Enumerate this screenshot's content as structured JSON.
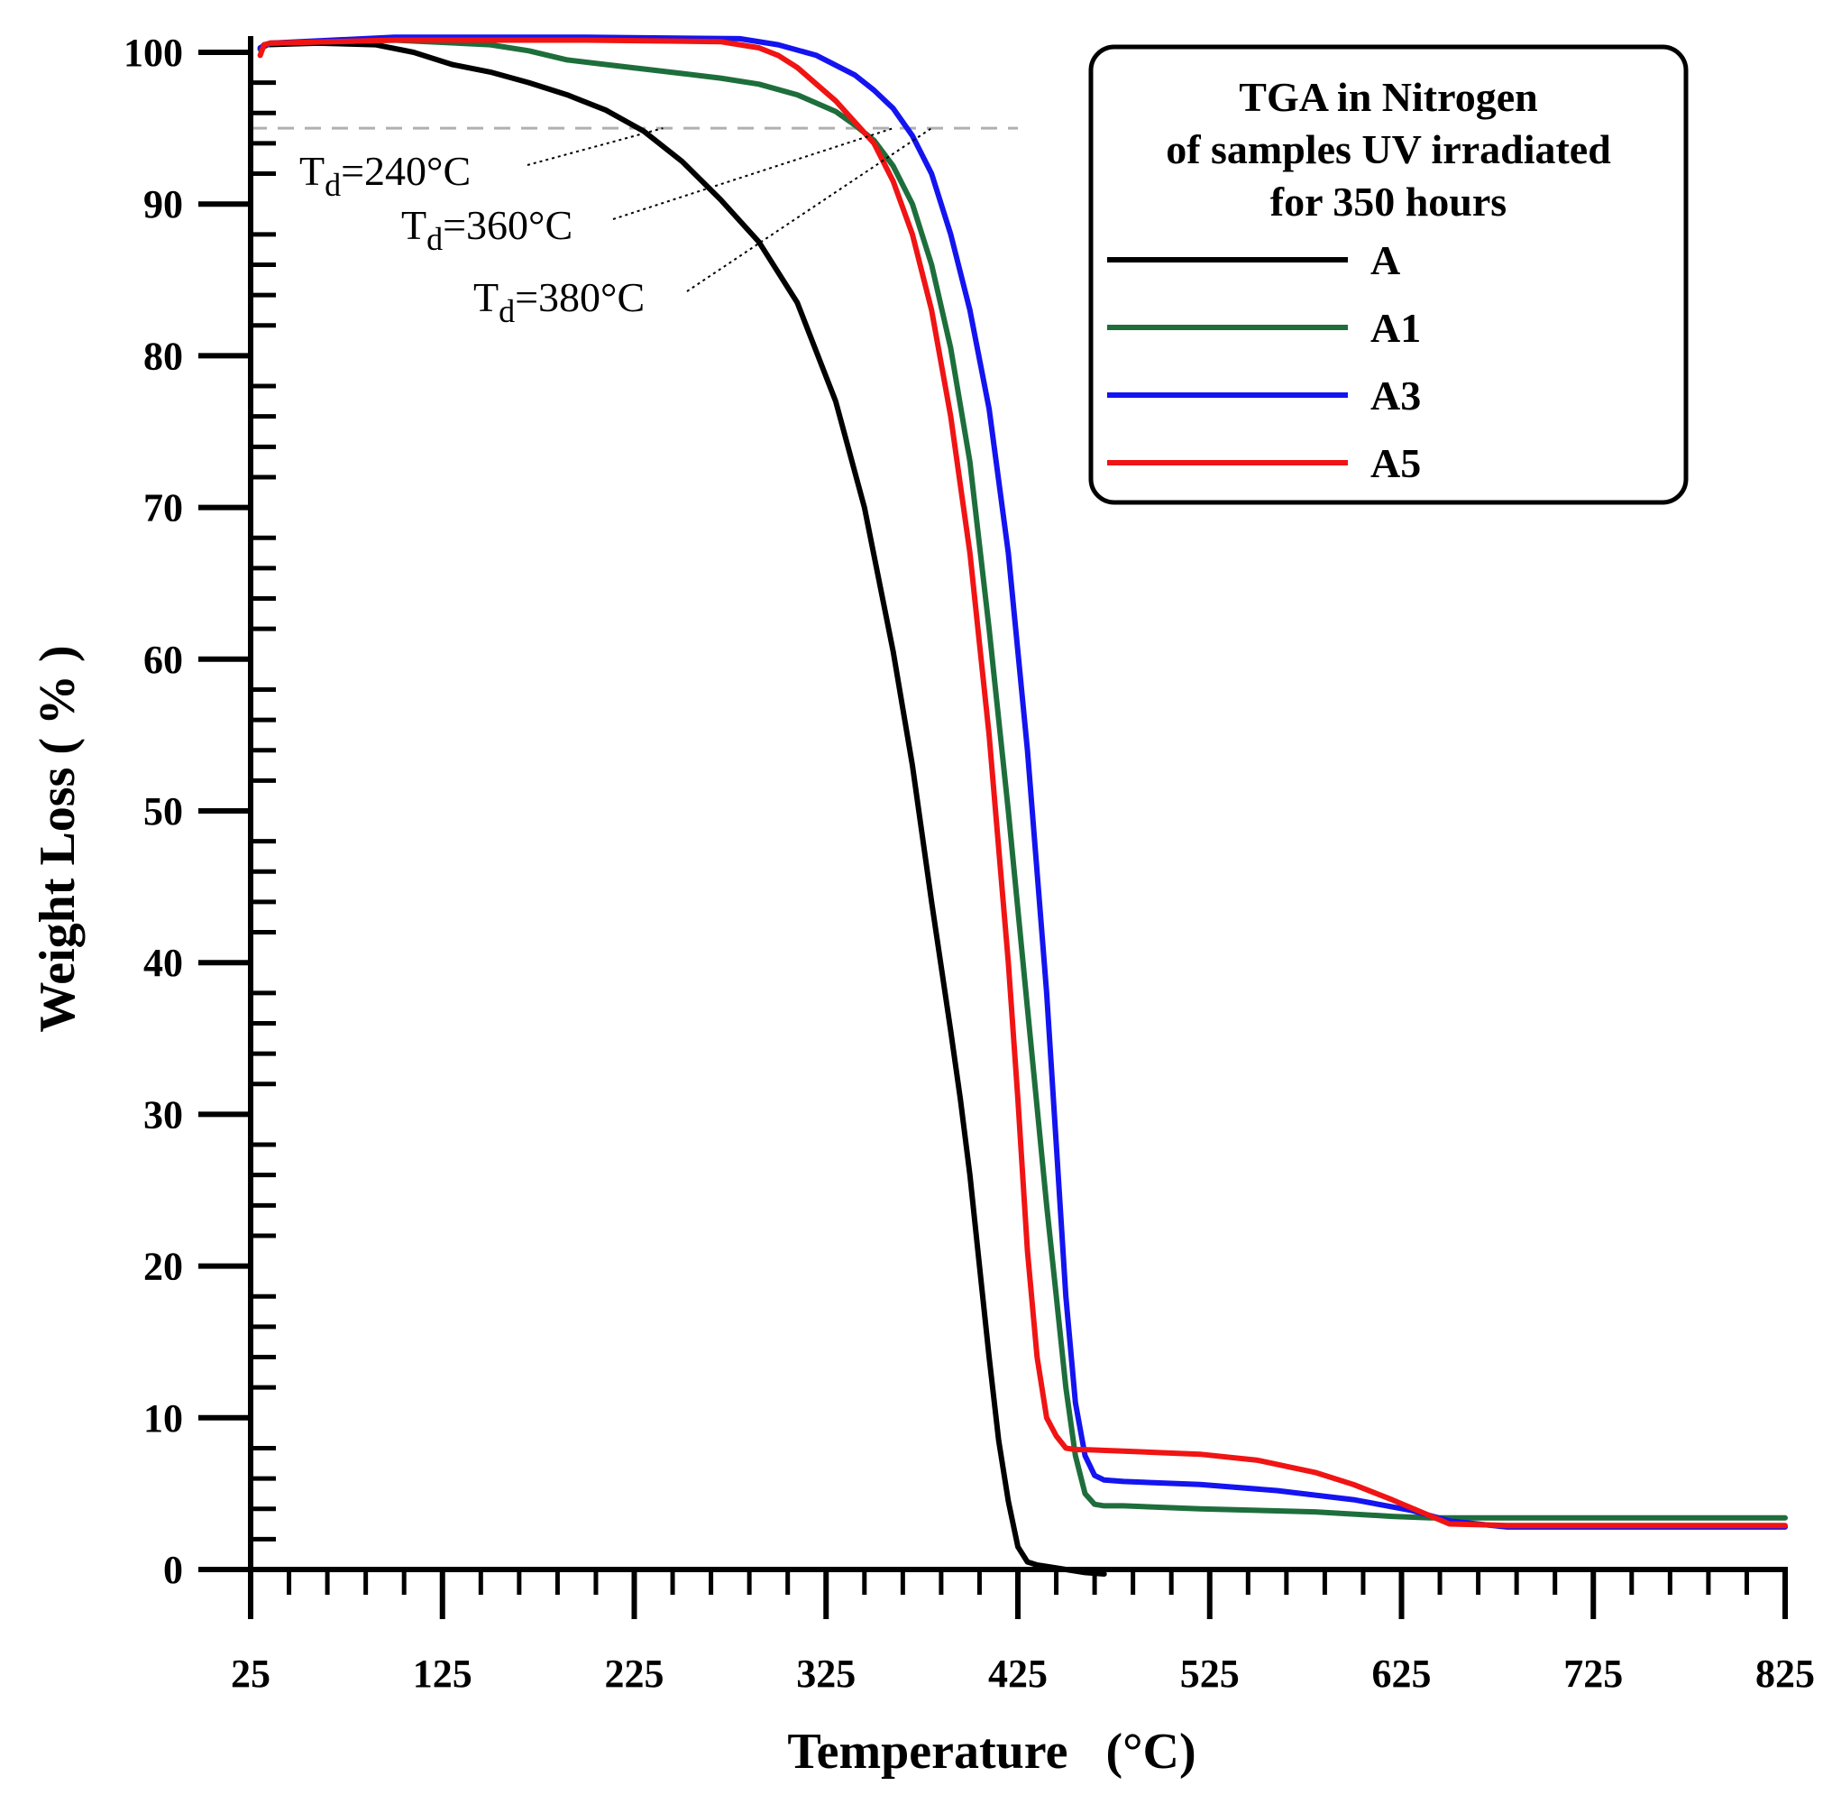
{
  "chart_data": {
    "type": "line",
    "title": "",
    "xlabel": "Temperature   (°C)",
    "ylabel": "Weight Loss ( % )",
    "xlim": [
      25,
      825
    ],
    "ylim": [
      0,
      100
    ],
    "x_ticks": [
      25,
      125,
      225,
      325,
      425,
      525,
      625,
      725,
      825
    ],
    "y_ticks": [
      0,
      10,
      20,
      30,
      40,
      50,
      60,
      70,
      80,
      90,
      100
    ],
    "x_minor_step": 20,
    "y_minor_step": 2,
    "grid": false,
    "reference_line": {
      "y": 95,
      "color": "#b0b0b0",
      "style": "dashed",
      "x_range": [
        25,
        425
      ]
    },
    "legend": {
      "position": "top-right",
      "title_lines": [
        "TGA in Nitrogen",
        "of samples UV irradiated",
        "for 350 hours"
      ]
    },
    "series": [
      {
        "name": "A",
        "color": "#000000",
        "x": [
          30,
          32,
          60,
          90,
          110,
          130,
          150,
          170,
          190,
          210,
          230,
          250,
          270,
          290,
          310,
          330,
          345,
          360,
          370,
          380,
          390,
          395,
          400,
          405,
          410,
          415,
          420,
          425,
          430,
          435,
          440,
          450,
          460,
          470
        ],
        "y": [
          100.2,
          100.5,
          100.6,
          100.5,
          100.0,
          99.2,
          98.7,
          98.0,
          97.2,
          96.2,
          94.8,
          92.8,
          90.3,
          87.5,
          83.5,
          77.0,
          70.0,
          60.5,
          53.0,
          44.0,
          35.5,
          31.0,
          26.0,
          20.0,
          14.0,
          8.5,
          4.5,
          1.5,
          0.5,
          0.3,
          0.2,
          0.0,
          -0.2,
          -0.3
        ]
      },
      {
        "name": "A1",
        "color": "#1e6e3c",
        "x": [
          30,
          35,
          100,
          150,
          170,
          190,
          210,
          230,
          250,
          270,
          290,
          310,
          330,
          340,
          350,
          360,
          370,
          380,
          390,
          400,
          410,
          420,
          430,
          440,
          445,
          450,
          455,
          460,
          465,
          470,
          480,
          520,
          580,
          620,
          640,
          660,
          720,
          825
        ],
        "y": [
          100.2,
          100.6,
          100.8,
          100.5,
          100.1,
          99.5,
          99.2,
          98.9,
          98.6,
          98.3,
          97.9,
          97.2,
          96.1,
          95.2,
          94.2,
          92.5,
          90.0,
          86.0,
          80.5,
          73.0,
          62.0,
          50.0,
          37.0,
          24.0,
          18.0,
          12.0,
          7.5,
          5.0,
          4.3,
          4.2,
          4.2,
          4.0,
          3.8,
          3.5,
          3.4,
          3.4,
          3.4,
          3.4
        ]
      },
      {
        "name": "A3",
        "color": "#1414f0",
        "x": [
          30,
          35,
          100,
          200,
          280,
          300,
          320,
          340,
          350,
          360,
          370,
          380,
          390,
          400,
          410,
          420,
          430,
          440,
          445,
          450,
          455,
          460,
          465,
          470,
          480,
          520,
          560,
          600,
          630,
          650,
          680,
          700,
          825
        ],
        "y": [
          100.3,
          100.6,
          101.0,
          101.0,
          100.9,
          100.5,
          99.8,
          98.5,
          97.5,
          96.3,
          94.5,
          92.0,
          88.0,
          83.0,
          76.5,
          67.0,
          54.0,
          38.0,
          28.0,
          18.0,
          11.0,
          7.5,
          6.2,
          5.9,
          5.8,
          5.6,
          5.2,
          4.6,
          3.9,
          3.2,
          2.8,
          2.8,
          2.8
        ]
      },
      {
        "name": "A5",
        "color": "#f01414",
        "x": [
          30,
          32,
          35,
          100,
          200,
          270,
          290,
          300,
          310,
          320,
          330,
          340,
          350,
          360,
          370,
          380,
          390,
          400,
          410,
          420,
          425,
          430,
          435,
          440,
          445,
          450,
          455,
          460,
          480,
          520,
          550,
          580,
          600,
          620,
          650,
          680,
          825
        ],
        "y": [
          99.8,
          100.5,
          100.6,
          100.8,
          100.8,
          100.7,
          100.3,
          99.8,
          99.0,
          97.9,
          96.8,
          95.4,
          94.0,
          91.5,
          88.0,
          83.0,
          76.0,
          67.0,
          55.0,
          40.0,
          31.0,
          21.0,
          14.0,
          10.0,
          8.8,
          8.0,
          7.9,
          7.9,
          7.8,
          7.6,
          7.2,
          6.4,
          5.6,
          4.6,
          3.0,
          2.9,
          2.9
        ]
      }
    ],
    "annotations": [
      {
        "prefix": "T",
        "sub": "d",
        "suffix": "=240°C",
        "target": [
          240,
          95
        ]
      },
      {
        "prefix": "T",
        "sub": "d",
        "suffix": "=360°C",
        "target": [
          360,
          95
        ]
      },
      {
        "prefix": "T",
        "sub": "d",
        "suffix": "=380°C",
        "target": [
          380,
          95
        ]
      }
    ]
  }
}
